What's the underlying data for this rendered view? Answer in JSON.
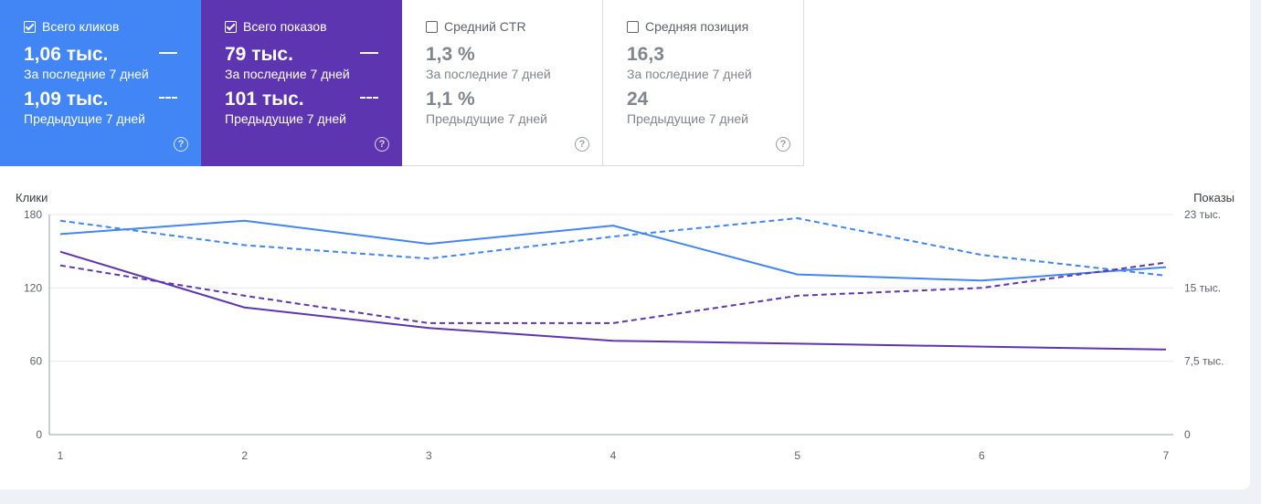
{
  "cards": [
    {
      "id": "clicks",
      "label": "Всего кликов",
      "checked": true,
      "color": "#4285f4",
      "current_value": "1,06 тыс.",
      "current_label": "За последние 7 дней",
      "previous_value": "1,09 тыс.",
      "previous_label": "Предыдущие 7 дней",
      "help": "?"
    },
    {
      "id": "impressions",
      "label": "Всего показов",
      "checked": true,
      "color": "#5e35b1",
      "current_value": "79 тыс.",
      "current_label": "За последние 7 дней",
      "previous_value": "101 тыс.",
      "previous_label": "Предыдущие 7 дней",
      "help": "?"
    },
    {
      "id": "ctr",
      "label": "Средний CTR",
      "checked": false,
      "current_value": "1,3 %",
      "current_label": "За последние 7 дней",
      "previous_value": "1,1 %",
      "previous_label": "Предыдущие 7 дней",
      "help": "?"
    },
    {
      "id": "position",
      "label": "Средняя позиция",
      "checked": false,
      "current_value": "16,3",
      "current_label": "За последние 7 дней",
      "previous_value": "24",
      "previous_label": "Предыдущие 7 дней",
      "help": "?"
    }
  ],
  "chart_data": {
    "type": "line",
    "x": [
      1,
      2,
      3,
      4,
      5,
      6,
      7
    ],
    "y_left": {
      "label": "Клики",
      "ticks": [
        "0",
        "60",
        "120",
        "180"
      ],
      "range": [
        0,
        180
      ]
    },
    "y_right": {
      "label": "Показы",
      "ticks": [
        "0",
        "7,5 тыс.",
        "15 тыс.",
        "23 тыс."
      ],
      "range": [
        0,
        22500
      ]
    },
    "grid": true,
    "series": [
      {
        "metric": "clicks",
        "period": "current",
        "axis": "left",
        "style": "solid",
        "color": "#4285f4",
        "values": [
          164,
          175,
          156,
          171,
          131,
          126,
          137
        ]
      },
      {
        "metric": "clicks",
        "period": "previous",
        "axis": "left",
        "style": "dashed",
        "color": "#4285f4",
        "values": [
          175,
          155,
          144,
          162,
          177,
          147,
          130
        ]
      },
      {
        "metric": "impressions",
        "period": "current",
        "axis": "right",
        "style": "solid",
        "color": "#5e35b1",
        "values": [
          18700,
          13000,
          10900,
          9600,
          9300,
          9000,
          8700
        ]
      },
      {
        "metric": "impressions",
        "period": "previous",
        "axis": "right",
        "style": "dashed",
        "color": "#5e35b1",
        "values": [
          17300,
          14200,
          11400,
          11400,
          14200,
          15000,
          17600
        ]
      }
    ]
  }
}
